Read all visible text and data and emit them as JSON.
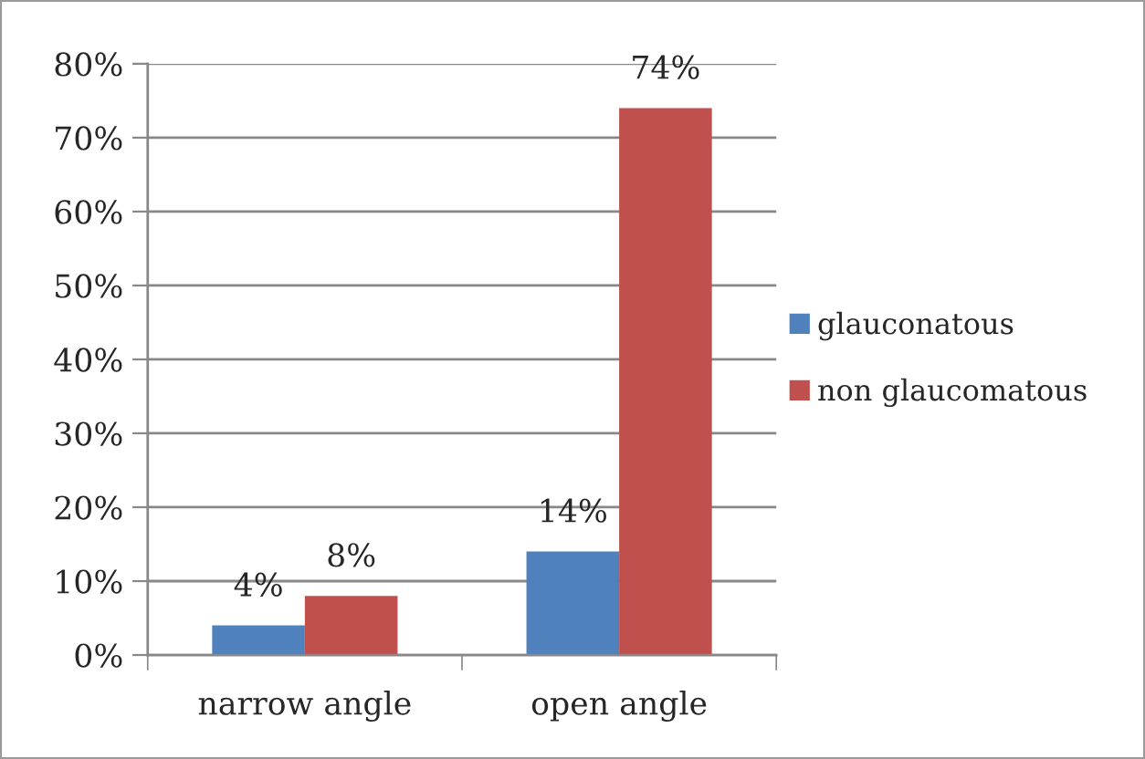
{
  "chart_data": {
    "type": "bar",
    "categories": [
      "narrow angle",
      "open angle"
    ],
    "series": [
      {
        "name": "glauconatous",
        "color": "#4f81bd",
        "values": [
          4,
          14
        ],
        "value_labels": [
          "4%",
          "14%"
        ]
      },
      {
        "name": "non glaucomatous",
        "color": "#c0504d",
        "values": [
          8,
          74
        ],
        "value_labels": [
          "8%",
          "74%"
        ]
      }
    ],
    "ylim": [
      0,
      80
    ],
    "yticks": [
      {
        "value": 0,
        "label": "0%"
      },
      {
        "value": 10,
        "label": "10%"
      },
      {
        "value": 20,
        "label": "20%"
      },
      {
        "value": 30,
        "label": "30%"
      },
      {
        "value": 40,
        "label": "40%"
      },
      {
        "value": 50,
        "label": "50%"
      },
      {
        "value": 60,
        "label": "60%"
      },
      {
        "value": 70,
        "label": "70%"
      },
      {
        "value": 80,
        "label": "80%"
      }
    ],
    "grid": "y",
    "legend": "right"
  }
}
